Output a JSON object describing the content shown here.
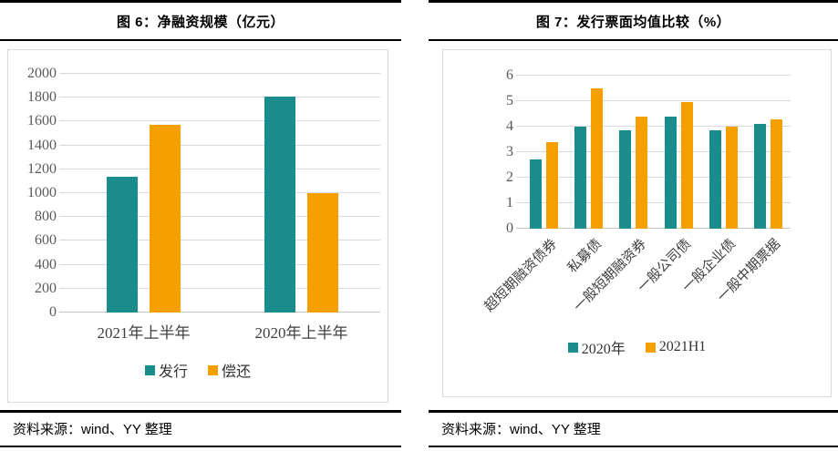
{
  "panels": [
    {
      "title": "图 6：净融资规模（亿元）",
      "source": "资料来源：wind、YY 整理"
    },
    {
      "title": "图 7：发行票面均值比较（%）",
      "source": "资料来源：wind、YY 整理"
    }
  ],
  "colors": {
    "series_teal": "#1A8C8C",
    "series_orange": "#F5A000",
    "gridline": "#D9D9D9",
    "rule": "#000000",
    "axis_text": "#595959"
  },
  "chart_data": [
    {
      "type": "bar",
      "title": "图 6：净融资规模（亿元）",
      "categories": [
        "2021年上半年",
        "2020年上半年"
      ],
      "series": [
        {
          "name": "发行",
          "color": "#1A8C8C",
          "values": [
            1135,
            1810
          ]
        },
        {
          "name": "偿还",
          "color": "#F5A000",
          "values": [
            1575,
            1000
          ]
        }
      ],
      "ylabel": "",
      "xlabel": "",
      "ylim": [
        0,
        2000
      ],
      "ytick_step": 200,
      "grid": true,
      "legend_position": "bottom"
    },
    {
      "type": "bar",
      "title": "图 7：发行票面均值比较（%）",
      "categories": [
        "超短期融资债券",
        "私募债",
        "一般短期融资券",
        "一般公司债",
        "一般企业债",
        "一般中期票据"
      ],
      "series": [
        {
          "name": "2020年",
          "color": "#1A8C8C",
          "values": [
            2.7,
            4.0,
            3.85,
            4.4,
            3.85,
            4.1
          ]
        },
        {
          "name": "2021H1",
          "color": "#F5A000",
          "values": [
            3.4,
            5.5,
            4.4,
            4.95,
            4.0,
            4.3
          ]
        }
      ],
      "ylabel": "",
      "xlabel": "",
      "ylim": [
        0,
        6
      ],
      "ytick_step": 1,
      "grid": true,
      "legend_position": "bottom",
      "xlabel_rotation": -45
    }
  ]
}
